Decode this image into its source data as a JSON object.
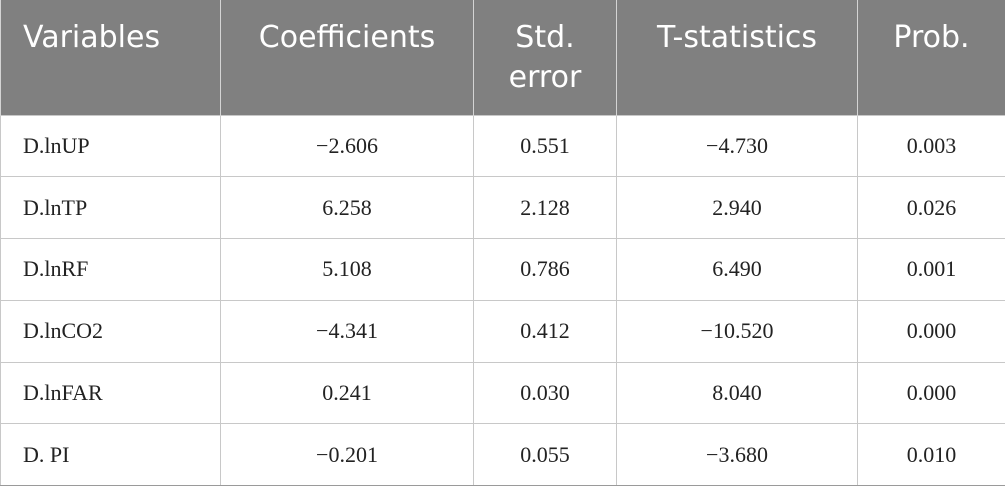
{
  "table": {
    "headers": [
      "Variables",
      "Coefficients",
      "Std.\nerror",
      "T-statistics",
      "Prob."
    ],
    "header_lines": [
      [
        "Variables"
      ],
      [
        "Coefficients"
      ],
      [
        "Std.",
        "error"
      ],
      [
        "T-statistics"
      ],
      [
        "Prob."
      ]
    ],
    "rows": [
      [
        "D.lnUP",
        "−2.606",
        "0.551",
        "−4.730",
        "0.003"
      ],
      [
        "D.lnTP",
        "6.258",
        "2.128",
        "2.940",
        "0.026"
      ],
      [
        "D.lnRF",
        "5.108",
        "0.786",
        "6.490",
        "0.001"
      ],
      [
        "D.lnCO2",
        "−4.341",
        "0.412",
        "−10.520",
        "0.000"
      ],
      [
        "D.lnFAR",
        "0.241",
        "0.030",
        "8.040",
        "0.000"
      ],
      [
        "D. PI",
        "−0.201",
        "0.055",
        "−3.680",
        "0.010"
      ]
    ]
  },
  "colors": {
    "header_background": "#808080",
    "header_text": "#ffffff",
    "grid_lines": "#c8c8c8"
  }
}
